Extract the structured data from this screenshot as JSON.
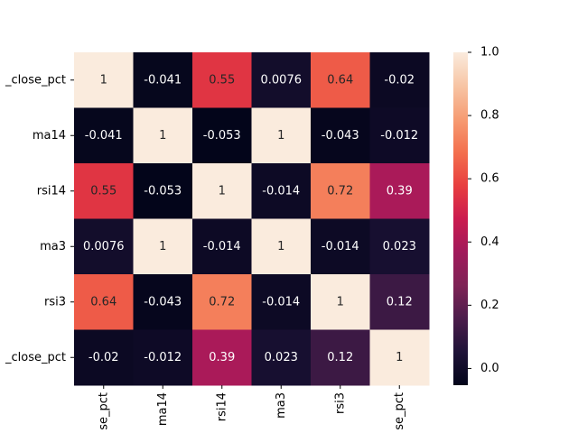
{
  "chart_data": {
    "type": "heatmap",
    "title": "",
    "xlabel": "",
    "ylabel": "",
    "row_labels": [
      "_close_pct",
      "ma14",
      "rsi14",
      "ma3",
      "rsi3",
      "_close_pct"
    ],
    "col_labels": [
      "se_pct",
      "ma14",
      "rsi14",
      "ma3",
      "rsi3",
      "se_pct"
    ],
    "values": [
      [
        1,
        -0.041,
        0.55,
        0.0076,
        0.64,
        -0.02
      ],
      [
        -0.041,
        1,
        -0.053,
        1,
        -0.043,
        -0.012
      ],
      [
        0.55,
        -0.053,
        1,
        -0.014,
        0.72,
        0.39
      ],
      [
        0.0076,
        1,
        -0.014,
        1,
        -0.014,
        0.023
      ],
      [
        0.64,
        -0.043,
        0.72,
        -0.014,
        1,
        0.12
      ],
      [
        -0.02,
        -0.012,
        0.39,
        0.023,
        0.12,
        1
      ]
    ],
    "annotations": [
      [
        "1",
        "-0.041",
        "0.55",
        "0.0076",
        "0.64",
        "-0.02"
      ],
      [
        "-0.041",
        "1",
        "-0.053",
        "1",
        "-0.043",
        "-0.012"
      ],
      [
        "0.55",
        "-0.053",
        "1",
        "-0.014",
        "0.72",
        "0.39"
      ],
      [
        "0.0076",
        "1",
        "-0.014",
        "1",
        "-0.014",
        "0.023"
      ],
      [
        "0.64",
        "-0.043",
        "0.72",
        "-0.014",
        "1",
        "0.12"
      ],
      [
        "-0.02",
        "-0.012",
        "0.39",
        "0.023",
        "0.12",
        "1"
      ]
    ],
    "colorbar": {
      "vmin": -0.053,
      "vmax": 1.0,
      "ticks": [
        0.0,
        0.2,
        0.4,
        0.6,
        0.8,
        1.0
      ],
      "tick_labels": [
        "0.0",
        "0.2",
        "0.4",
        "0.6",
        "0.8",
        "1.0"
      ],
      "colormap": "rocket",
      "color_stops": [
        "#03051a",
        "#1f1338",
        "#4c1d4b",
        "#7f2356",
        "#a11a5b",
        "#cb1b4f",
        "#e83f3f",
        "#f3704e",
        "#f69c73",
        "#f7c5a5",
        "#faebdd"
      ]
    }
  }
}
